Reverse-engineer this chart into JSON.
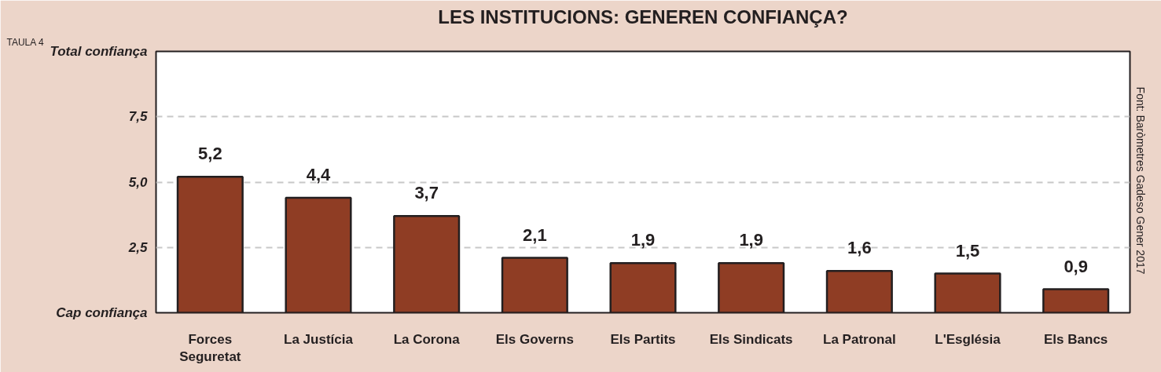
{
  "chart_data": {
    "type": "bar",
    "title": "LES INSTITUCIONS: GENEREN CONFIANÇA?",
    "categories": [
      "Forces\nSeguretat",
      "La Justícia",
      "La Corona",
      "Els Governs",
      "Els Partits",
      "Els Sindicats",
      "La Patronal",
      "L'Església",
      "Els Bancs"
    ],
    "values": [
      5.2,
      4.4,
      3.7,
      2.1,
      1.9,
      1.9,
      1.6,
      1.5,
      0.9
    ],
    "value_labels": [
      "5,2",
      "4,4",
      "3,7",
      "2,1",
      "1,9",
      "1,9",
      "1,6",
      "1,5",
      "0,9"
    ],
    "color": "#8f3d24",
    "ylim": [
      0,
      10
    ],
    "yticks": [
      {
        "value": 0,
        "label": "Cap confiança"
      },
      {
        "value": 2.5,
        "label": "2,5"
      },
      {
        "value": 5,
        "label": "5,0"
      },
      {
        "value": 7.5,
        "label": "7,5"
      },
      {
        "value": 10,
        "label": "Total confiança"
      }
    ],
    "grid": "y",
    "annotations": [
      "TAULA 4",
      "Font: Baròmetres Gadeso Gener  2017"
    ]
  }
}
